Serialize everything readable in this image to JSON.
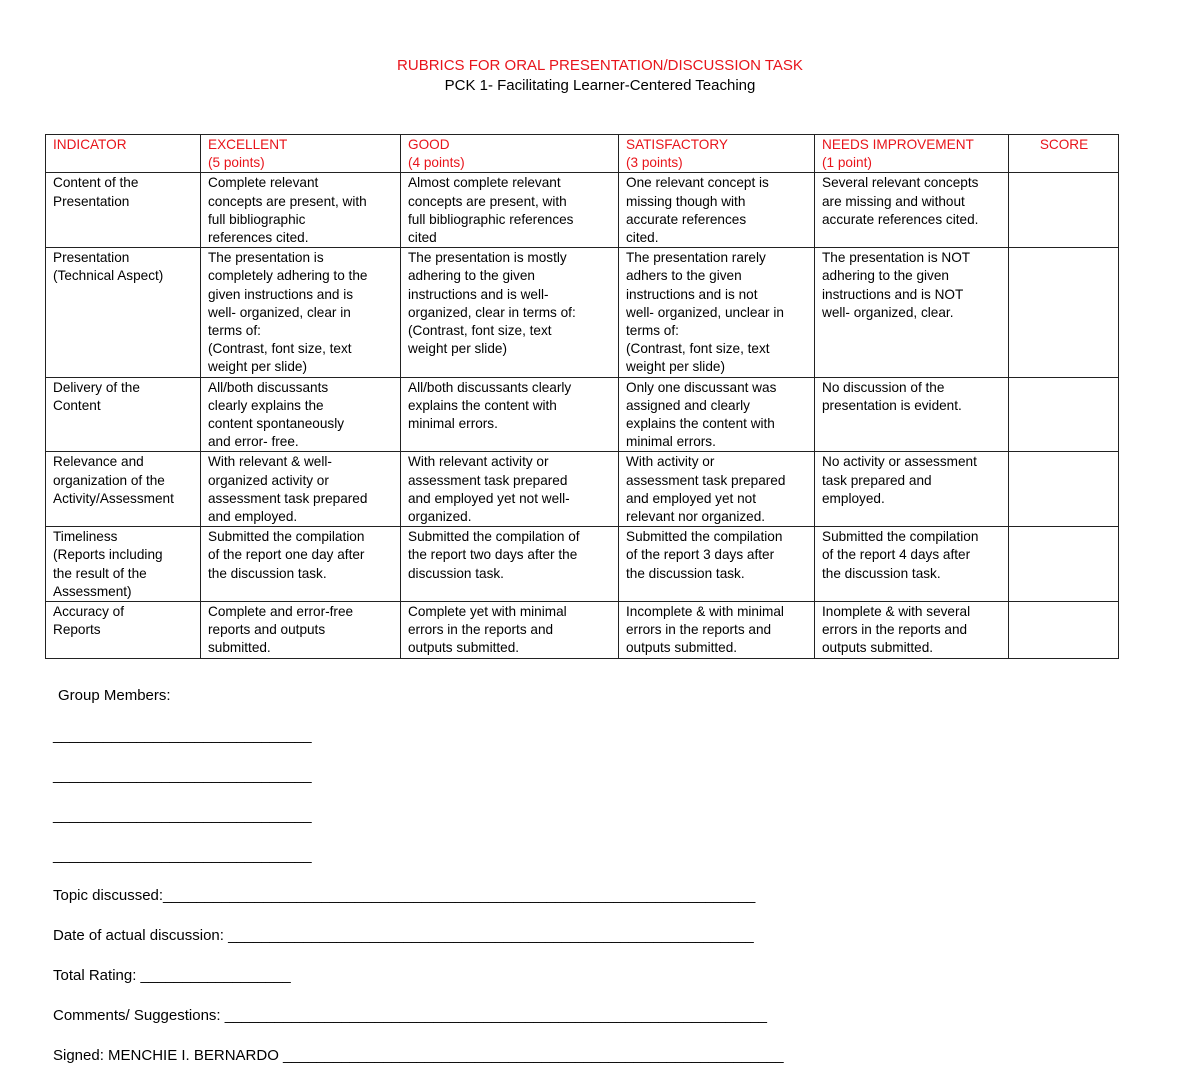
{
  "title": "RUBRICS FOR ORAL PRESENTATION/DISCUSSION TASK",
  "subtitle": "PCK 1- Facilitating Learner-Centered Teaching",
  "headers": [
    "INDICATOR",
    "EXCELLENT\n(5 points)",
    "GOOD\n(4 points)",
    "SATISFACTORY\n(3 points)",
    "NEEDS IMPROVEMENT\n(1 point)",
    "SCORE"
  ],
  "rows": [
    [
      "Content of the\nPresentation",
      "Complete relevant\nconcepts are present, with\nfull bibliographic\nreferences cited.",
      "Almost complete relevant\nconcepts are present, with\nfull bibliographic references\ncited",
      "   One relevant concept is\n   missing though with\n   accurate references\n   cited.",
      "Several relevant concepts\nare missing and without\naccurate references cited.",
      ""
    ],
    [
      "Presentation\n(Technical Aspect)",
      "The presentation is\ncompletely adhering to the\ngiven instructions and is\nwell- organized, clear in\nterms of:\n(Contrast, font size, text\nweight per slide)",
      "The presentation is mostly\nadhering to the given\ninstructions and is well-\norganized, clear in terms of:\n(Contrast, font size, text\nweight per slide)",
      "The presentation rarely\nadhers to the given\ninstructions and is not\nwell- organized, unclear in\nterms of:\n(Contrast, font size, text\nweight per slide)",
      "The presentation is NOT\nadhering to the given\ninstructions and is NOT\nwell- organized, clear.",
      ""
    ],
    [
      "Delivery of the\nContent",
      "All/both discussants\nclearly explains the\ncontent spontaneously\nand error- free.",
      "All/both discussants clearly\nexplains the content with\nminimal errors.",
      "Only one discussant was\nassigned and clearly\nexplains the content with\nminimal errors.",
      "No discussion of the\npresentation is evident.",
      ""
    ],
    [
      "Relevance and\norganization of the\nActivity/Assessment",
      "With  relevant & well-\norganized activity or\nassessment task prepared\nand employed.",
      "With  relevant activity or\nassessment task prepared\nand employed yet not well-\norganized.",
      "With activity or\nassessment task prepared\nand employed yet not\nrelevant nor organized.",
      "No activity or assessment\ntask prepared and\nemployed.",
      ""
    ],
    [
      "Timeliness\n(Reports including\nthe result of the\nAssessment)",
      "Submitted the compilation\nof the report one day after\nthe discussion task.",
      "Submitted the compilation of\nthe report two days after the\ndiscussion task.",
      "Submitted the compilation\nof the report 3 days after\nthe discussion task.",
      "Submitted the compilation\nof the report 4 days after\nthe discussion task.",
      ""
    ],
    [
      "Accuracy of\nReports",
      "Complete and error-free\nreports and outputs\nsubmitted.",
      "Complete yet with minimal\nerrors in the reports and\noutputs submitted.",
      "Incomplete & with minimal\nerrors in the reports and\noutputs submitted.",
      "Inomplete & with several\nerrors in the reports and\noutputs submitted.",
      ""
    ]
  ],
  "footer": {
    "group_members": "Group Members:",
    "blank": "_______________________________",
    "topic": "Topic discussed:_______________________________________________________________________",
    "date": "Date of actual discussion: _______________________________________________________________",
    "total": "Total Rating: __________________",
    "comments": "Comments/ Suggestions: _________________________________________________________________",
    "signed": "Signed: MENCHIE I. BERNARDO ____________________________________________________________"
  }
}
